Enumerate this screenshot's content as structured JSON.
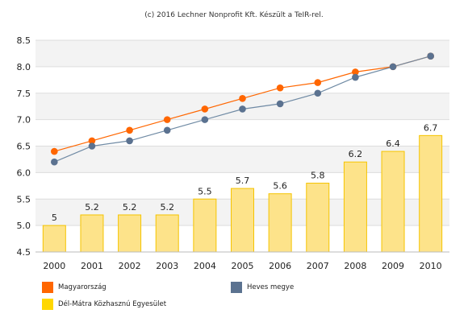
{
  "credit": "(c) 2016 Lechner Nonprofit Kft. Készült a TeIR-rel.",
  "colors": {
    "magyarorszag": "#ff6600",
    "heves": "#5b7290",
    "bar_fill": "#fde38a",
    "bar_edge": "#f5c400",
    "band": "#f3f3f3",
    "grid": "#dddddd",
    "smooth_line": "#6f8aa4"
  },
  "legend": [
    {
      "key": "magyarorszag",
      "label": "Magyarország"
    },
    {
      "key": "heves",
      "label": "Heves megye"
    },
    {
      "key": "dmke",
      "label": "Dél-Mátra Közhasznú Egyesület"
    }
  ],
  "chart_data": {
    "type": "bar",
    "categories": [
      "2000",
      "2001",
      "2002",
      "2003",
      "2004",
      "2005",
      "2006",
      "2007",
      "2008",
      "2009",
      "2010"
    ],
    "ylim": [
      4.5,
      8.5
    ],
    "yticks": [
      "4.5",
      "5.0",
      "5.5",
      "6.0",
      "6.5",
      "7.0",
      "7.5",
      "8.0",
      "8.5"
    ],
    "grid": true,
    "legend_position": "bottom",
    "bar_series": {
      "name": "Dél-Mátra Közhasznú Egyesület",
      "values": [
        5,
        5.2,
        5.2,
        5.2,
        5.5,
        5.7,
        5.6,
        5.8,
        6.2,
        6.4,
        6.7
      ],
      "labels": [
        "5",
        "5.2",
        "5.2",
        "5.2",
        "5.5",
        "5.7",
        "5.6",
        "5.8",
        "6.2",
        "6.4",
        "6.7"
      ]
    },
    "line_series": [
      {
        "name": "Magyarország",
        "values": [
          6.4,
          6.6,
          6.8,
          7.0,
          7.2,
          7.4,
          7.6,
          7.7,
          7.9,
          8.0,
          8.2
        ]
      },
      {
        "name": "Heves megye",
        "values": [
          6.2,
          6.5,
          6.6,
          6.8,
          7.0,
          7.2,
          7.3,
          7.5,
          7.8,
          8.0,
          8.2
        ]
      }
    ]
  }
}
